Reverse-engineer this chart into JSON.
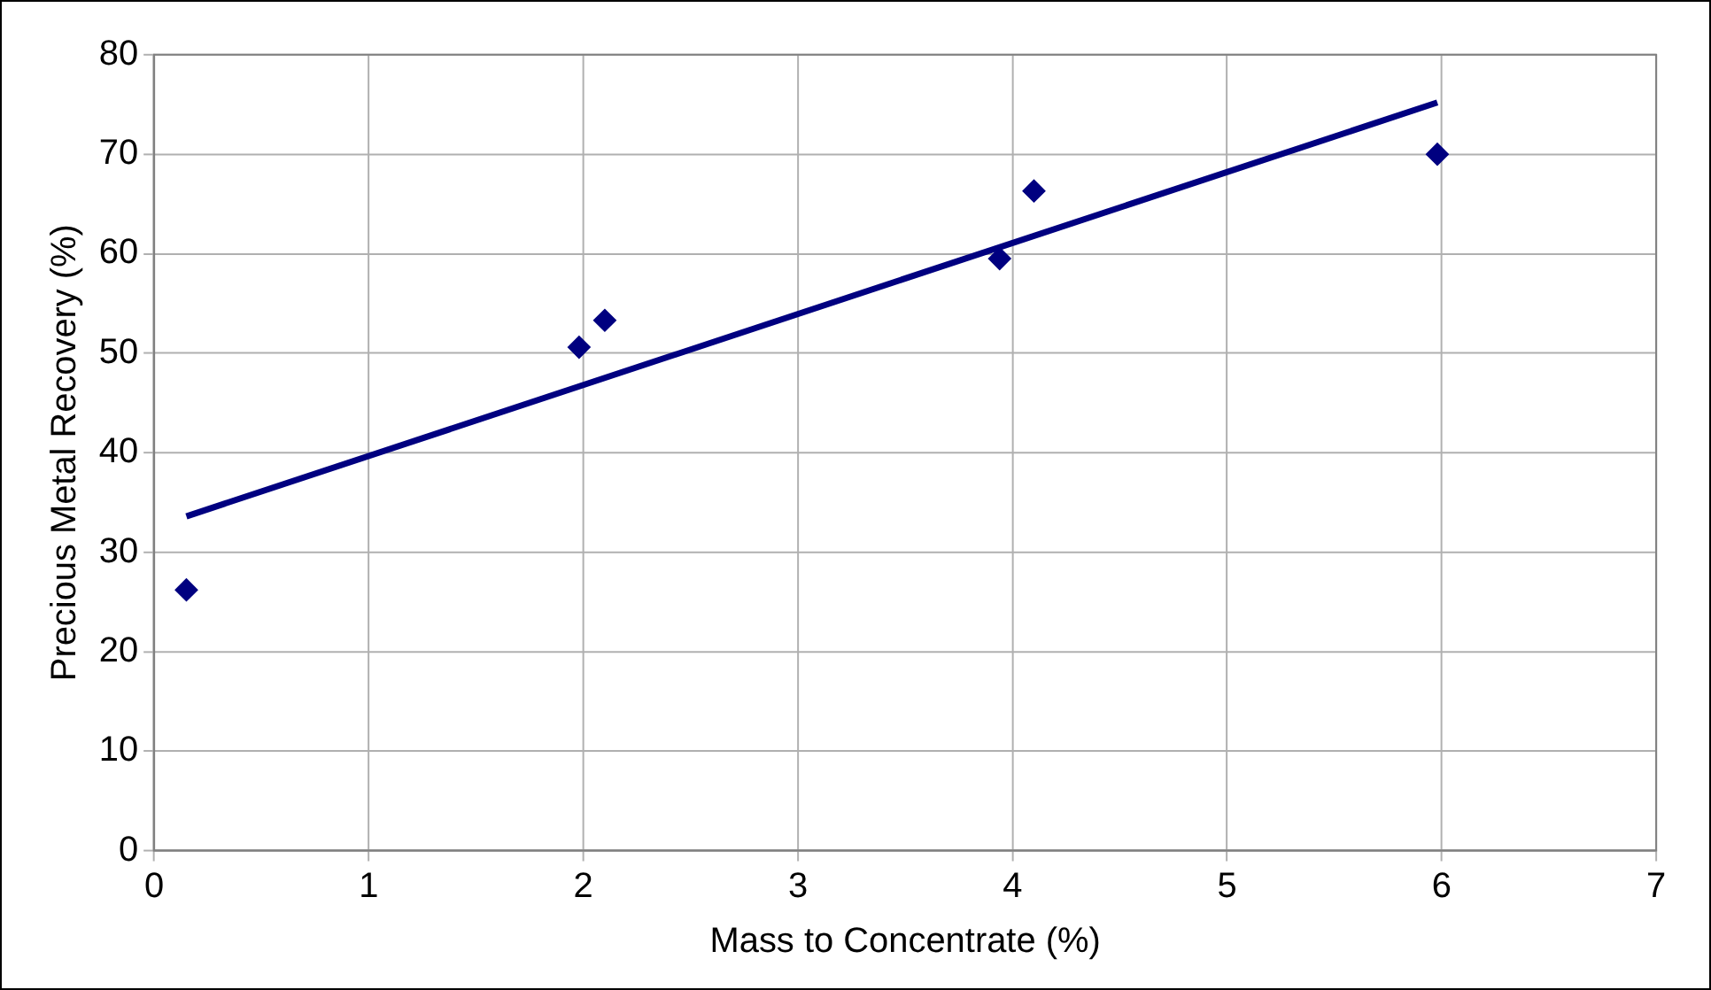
{
  "chart_data": {
    "type": "scatter",
    "xlabel": "Mass to Concentrate (%)",
    "ylabel": "Precious Metal Recovery (%)",
    "xlim": [
      0,
      7
    ],
    "xticks": [
      0,
      1,
      2,
      3,
      4,
      5,
      6,
      7
    ],
    "ylim": [
      0,
      80
    ],
    "yticks": [
      0,
      10,
      20,
      30,
      40,
      50,
      60,
      70,
      80
    ],
    "grid": true,
    "marker": "diamond",
    "series": [
      {
        "type": "scatter",
        "color": "#000080",
        "x": [
          0.15,
          1.98,
          2.1,
          3.94,
          4.1,
          5.98
        ],
        "values": [
          26.2,
          50.6,
          53.3,
          59.5,
          66.3,
          70.0
        ]
      },
      {
        "type": "line",
        "color": "#000080",
        "x": [
          0.15,
          5.98
        ],
        "values": [
          33.6,
          75.2
        ],
        "marker": "none"
      }
    ]
  }
}
